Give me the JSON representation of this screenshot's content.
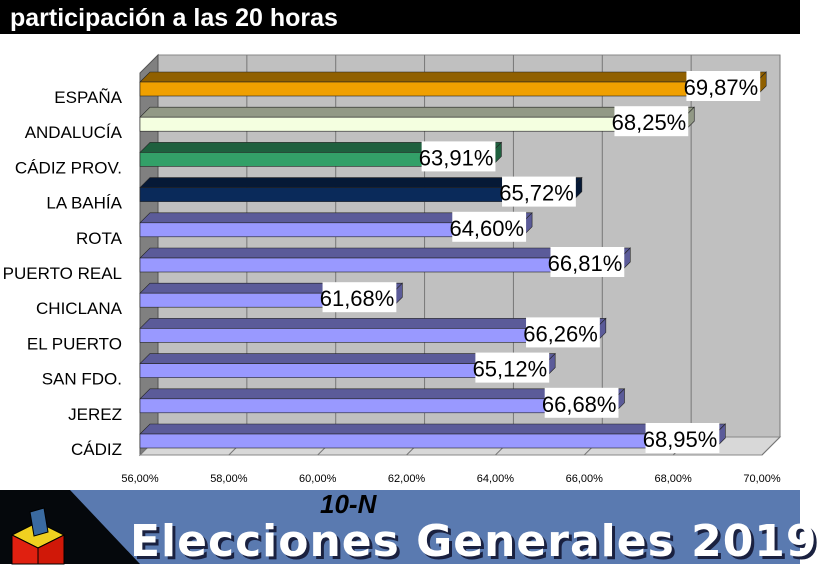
{
  "header": {
    "title": "participación a las 20 horas"
  },
  "footer": {
    "tag": "10-N",
    "title": "Elecciones Generales 2019"
  },
  "chart_data": {
    "type": "bar",
    "orientation": "horizontal",
    "title": "participación a las 20 horas",
    "categories": [
      "ESPAÑA",
      "ANDALUCÍA",
      "CÁDIZ PROV.",
      "LA BAHÍA",
      "ROTA",
      "PUERTO REAL",
      "CHICLANA",
      "EL PUERTO",
      "SAN FDO.",
      "JEREZ",
      "CÁDIZ"
    ],
    "values": [
      69.87,
      68.25,
      63.91,
      65.72,
      64.6,
      66.81,
      61.68,
      66.26,
      65.12,
      66.68,
      68.95
    ],
    "value_labels": [
      "69,87%",
      "68,25%",
      "63,91%",
      "65,72%",
      "64,60%",
      "66,81%",
      "61,68%",
      "66,26%",
      "65,12%",
      "66,68%",
      "68,95%"
    ],
    "colors": [
      "#f0a000",
      "#f4ffe0",
      "#33a068",
      "#0a2a5a",
      "#9999ff",
      "#9999ff",
      "#9999ff",
      "#9999ff",
      "#9999ff",
      "#9999ff",
      "#9999ff"
    ],
    "xlim": [
      56,
      70
    ],
    "xticks": [
      "56,00%",
      "58,00%",
      "60,00%",
      "62,00%",
      "64,00%",
      "66,00%",
      "68,00%",
      "70,00%"
    ],
    "grid": true
  }
}
